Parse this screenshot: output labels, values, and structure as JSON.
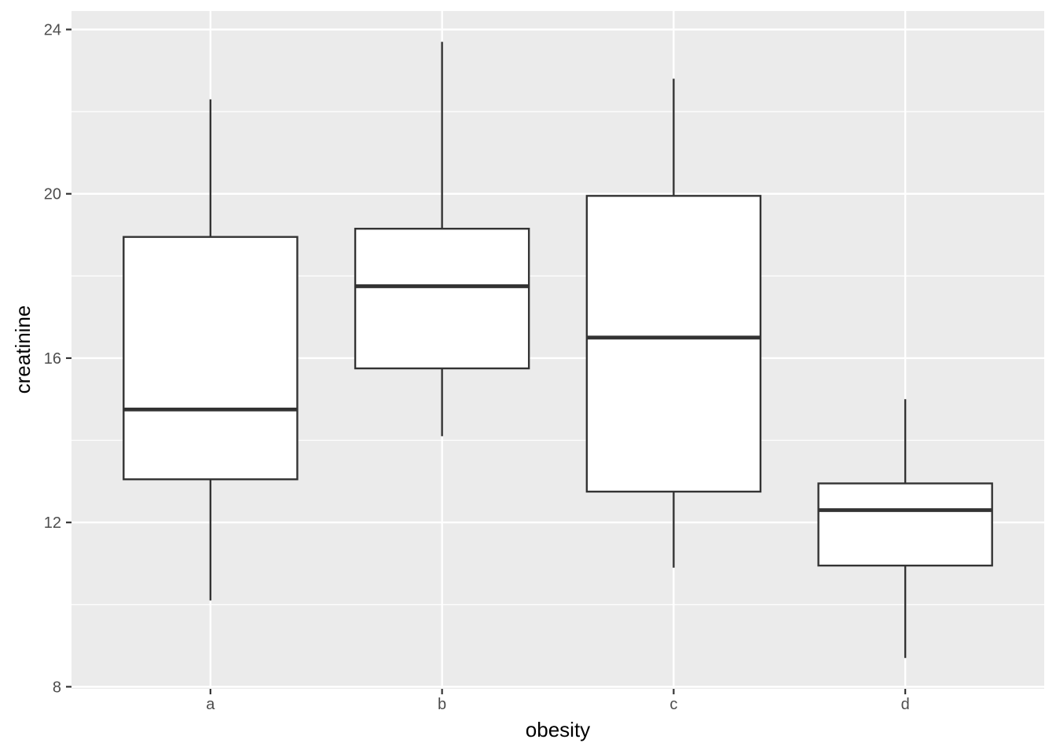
{
  "chart_data": {
    "type": "box",
    "xlabel": "obesity",
    "ylabel": "creatinine",
    "categories": [
      "a",
      "b",
      "c",
      "d"
    ],
    "boxes": [
      {
        "category": "a",
        "whisker_low": 10.1,
        "q1": 13.05,
        "median": 14.75,
        "q3": 18.95,
        "whisker_high": 22.3
      },
      {
        "category": "b",
        "whisker_low": 14.1,
        "q1": 15.75,
        "median": 17.75,
        "q3": 19.15,
        "whisker_high": 23.7
      },
      {
        "category": "c",
        "whisker_low": 10.9,
        "q1": 12.75,
        "median": 16.5,
        "q3": 19.95,
        "whisker_high": 22.8
      },
      {
        "category": "d",
        "whisker_low": 8.7,
        "q1": 10.95,
        "median": 12.3,
        "q3": 12.95,
        "whisker_high": 15.0
      }
    ],
    "ylim": [
      7.95,
      24.45
    ],
    "yticks": [
      8,
      12,
      16,
      20,
      24
    ],
    "grid": true,
    "colors": {
      "panel": "#ebebeb",
      "grid": "#ffffff",
      "box_fill": "#ffffff",
      "box_line": "#333333",
      "tick_text": "#4d4d4d"
    }
  }
}
